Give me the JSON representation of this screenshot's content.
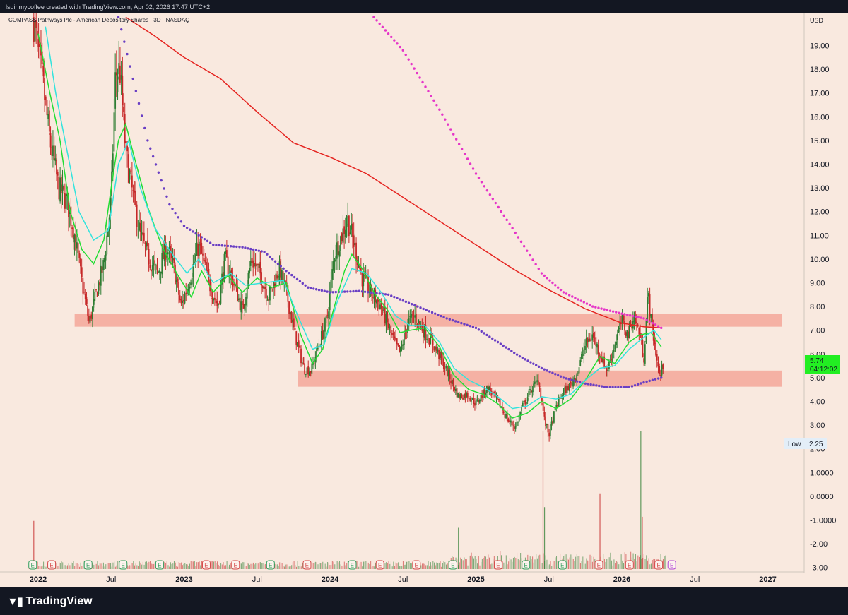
{
  "header": {
    "credit": "lsdinmycoffee created with TradingView.com, Apr 02, 2026 17:47 UTC+2"
  },
  "footer": {
    "logo_text": "TradingView"
  },
  "colors": {
    "background": "#f9e9df",
    "bull": "#2e7d32",
    "bear": "#c62828",
    "zone": "#f4a79a",
    "ma_red": "#e52420",
    "ma_magenta": "#e535c8",
    "ma_blue": "#6a3fc4",
    "ma_green": "#22dd33",
    "ma_cyan": "#33e3dd",
    "last_price_bg": "#22ee22"
  },
  "chart_data": {
    "type": "candlestick",
    "title": "COMPASS Pathways Plc - American Depository Shares · 3D · NASDAQ",
    "currency": "USD",
    "price_axis": {
      "ylim": [
        -3.0,
        20.0
      ],
      "ticks": [
        "-3.00",
        "-2.00",
        "-1.0000",
        "0.0000",
        "1.0000",
        "2.00",
        "3.00",
        "4.00",
        "5.00",
        "6.00",
        "7.00",
        "8.00",
        "9.00",
        "10.00",
        "11.00",
        "12.00",
        "13.00",
        "14.00",
        "15.00",
        "16.00",
        "17.00",
        "18.00",
        "19.00"
      ]
    },
    "time_axis": {
      "ticks": [
        "2022",
        "Jul",
        "2023",
        "Jul",
        "2024",
        "Jul",
        "2025",
        "Jul",
        "2026",
        "Jul",
        "2027"
      ],
      "bold_ticks": [
        "2022",
        "2023",
        "2024",
        "2025",
        "2026",
        "2027"
      ]
    },
    "last_price": "5.74",
    "countdown": "04:12:02",
    "low_label": "Low",
    "low_value": "2.25",
    "support_zones": [
      {
        "from": 2022.25,
        "to": 2027.45,
        "low": 7.15,
        "high": 7.7
      },
      {
        "from": 2023.78,
        "to": 2028.78,
        "low": 4.62,
        "high": 5.3
      }
    ],
    "price_path": [
      [
        2021.97,
        20.0
      ],
      [
        2022.03,
        17.5
      ],
      [
        2022.08,
        15.0
      ],
      [
        2022.14,
        13.0
      ],
      [
        2022.2,
        12.4
      ],
      [
        2022.25,
        11.0
      ],
      [
        2022.3,
        9.0
      ],
      [
        2022.35,
        7.3
      ],
      [
        2022.4,
        8.6
      ],
      [
        2022.45,
        9.8
      ],
      [
        2022.5,
        12.5
      ],
      [
        2022.53,
        17.8
      ],
      [
        2022.56,
        18.0
      ],
      [
        2022.6,
        14.5
      ],
      [
        2022.64,
        13.0
      ],
      [
        2022.7,
        11.0
      ],
      [
        2022.76,
        10.0
      ],
      [
        2022.82,
        9.4
      ],
      [
        2022.88,
        10.5
      ],
      [
        2022.93,
        9.6
      ],
      [
        2022.98,
        8.0
      ],
      [
        2023.05,
        9.4
      ],
      [
        2023.1,
        10.6
      ],
      [
        2023.17,
        9.0
      ],
      [
        2023.23,
        8.0
      ],
      [
        2023.28,
        10.0
      ],
      [
        2023.34,
        9.0
      ],
      [
        2023.4,
        7.8
      ],
      [
        2023.46,
        10.0
      ],
      [
        2023.52,
        9.4
      ],
      [
        2023.58,
        8.4
      ],
      [
        2023.65,
        9.6
      ],
      [
        2023.7,
        8.6
      ],
      [
        2023.76,
        6.8
      ],
      [
        2023.82,
        5.4
      ],
      [
        2023.87,
        5.3
      ],
      [
        2023.93,
        6.5
      ],
      [
        2023.98,
        7.5
      ],
      [
        2024.03,
        10.2
      ],
      [
        2024.08,
        11.0
      ],
      [
        2024.12,
        11.7
      ],
      [
        2024.17,
        10.5
      ],
      [
        2024.22,
        9.2
      ],
      [
        2024.28,
        8.6
      ],
      [
        2024.35,
        8.0
      ],
      [
        2024.42,
        6.8
      ],
      [
        2024.48,
        6.0
      ],
      [
        2024.53,
        7.3
      ],
      [
        2024.58,
        7.6
      ],
      [
        2024.64,
        7.0
      ],
      [
        2024.7,
        6.5
      ],
      [
        2024.76,
        5.8
      ],
      [
        2024.82,
        5.0
      ],
      [
        2024.88,
        4.2
      ],
      [
        2024.94,
        4.3
      ],
      [
        2025.0,
        3.9
      ],
      [
        2025.08,
        4.6
      ],
      [
        2025.15,
        4.0
      ],
      [
        2025.22,
        3.2
      ],
      [
        2025.27,
        2.9
      ],
      [
        2025.32,
        3.8
      ],
      [
        2025.38,
        4.5
      ],
      [
        2025.43,
        4.9
      ],
      [
        2025.47,
        3.2
      ],
      [
        2025.5,
        2.6
      ],
      [
        2025.55,
        3.8
      ],
      [
        2025.6,
        4.4
      ],
      [
        2025.65,
        4.7
      ],
      [
        2025.7,
        5.3
      ],
      [
        2025.75,
        6.4
      ],
      [
        2025.8,
        6.8
      ],
      [
        2025.85,
        6.0
      ],
      [
        2025.9,
        5.3
      ],
      [
        2025.95,
        6.4
      ],
      [
        2026.0,
        7.4
      ],
      [
        2026.04,
        6.8
      ],
      [
        2026.08,
        7.6
      ],
      [
        2026.12,
        6.9
      ],
      [
        2026.15,
        5.8
      ],
      [
        2026.18,
        8.6
      ],
      [
        2026.2,
        7.4
      ],
      [
        2026.23,
        6.2
      ],
      [
        2026.26,
        5.0
      ],
      [
        2026.29,
        5.74
      ]
    ],
    "moving_averages": [
      {
        "color": "#e52420",
        "style": "line",
        "points": [
          [
            2022.6,
            20.2
          ],
          [
            2022.8,
            19.4
          ],
          [
            2023.0,
            18.5
          ],
          [
            2023.25,
            17.6
          ],
          [
            2023.5,
            16.2
          ],
          [
            2023.75,
            14.9
          ],
          [
            2024.0,
            14.3
          ],
          [
            2024.25,
            13.6
          ],
          [
            2024.5,
            12.6
          ],
          [
            2024.75,
            11.6
          ],
          [
            2025.0,
            10.6
          ],
          [
            2025.25,
            9.6
          ],
          [
            2025.5,
            8.7
          ],
          [
            2025.75,
            7.9
          ],
          [
            2026.0,
            7.3
          ],
          [
            2026.15,
            7.15
          ],
          [
            2026.27,
            7.1
          ]
        ]
      },
      {
        "color": "#e535c8",
        "style": "dots",
        "points": [
          [
            2024.3,
            20.2
          ],
          [
            2024.5,
            18.8
          ],
          [
            2024.75,
            16.3
          ],
          [
            2025.0,
            13.6
          ],
          [
            2025.25,
            11.3
          ],
          [
            2025.45,
            9.4
          ],
          [
            2025.6,
            8.6
          ],
          [
            2025.8,
            8.0
          ],
          [
            2026.0,
            7.7
          ],
          [
            2026.15,
            7.5
          ],
          [
            2026.27,
            7.1
          ]
        ]
      },
      {
        "color": "#6a3fc4",
        "style": "dots",
        "points": [
          [
            2022.55,
            20.2
          ],
          [
            2022.75,
            15.0
          ],
          [
            2022.9,
            12.3
          ],
          [
            2023.0,
            11.4
          ],
          [
            2023.2,
            10.6
          ],
          [
            2023.4,
            10.5
          ],
          [
            2023.55,
            10.3
          ],
          [
            2023.7,
            9.5
          ],
          [
            2023.85,
            8.8
          ],
          [
            2024.0,
            8.6
          ],
          [
            2024.2,
            8.65
          ],
          [
            2024.4,
            8.5
          ],
          [
            2024.6,
            8.0
          ],
          [
            2024.8,
            7.5
          ],
          [
            2025.0,
            7.1
          ],
          [
            2025.15,
            6.5
          ],
          [
            2025.3,
            5.9
          ],
          [
            2025.45,
            5.4
          ],
          [
            2025.6,
            5.0
          ],
          [
            2025.75,
            4.75
          ],
          [
            2025.9,
            4.6
          ],
          [
            2026.05,
            4.6
          ],
          [
            2026.15,
            4.8
          ],
          [
            2026.27,
            5.0
          ]
        ]
      },
      {
        "color": "#22dd33",
        "style": "line",
        "points": [
          [
            2022.0,
            19.5
          ],
          [
            2022.08,
            17.0
          ],
          [
            2022.15,
            15.0
          ],
          [
            2022.22,
            12.0
          ],
          [
            2022.3,
            10.4
          ],
          [
            2022.38,
            9.8
          ],
          [
            2022.45,
            10.8
          ],
          [
            2022.5,
            13.0
          ],
          [
            2022.55,
            15.0
          ],
          [
            2022.6,
            15.7
          ],
          [
            2022.65,
            14.5
          ],
          [
            2022.75,
            12.2
          ],
          [
            2022.85,
            10.5
          ],
          [
            2022.95,
            9.4
          ],
          [
            2023.05,
            8.4
          ],
          [
            2023.12,
            9.5
          ],
          [
            2023.2,
            8.6
          ],
          [
            2023.3,
            9.3
          ],
          [
            2023.4,
            8.6
          ],
          [
            2023.5,
            9.2
          ],
          [
            2023.6,
            8.8
          ],
          [
            2023.7,
            9.0
          ],
          [
            2023.8,
            6.8
          ],
          [
            2023.88,
            5.6
          ],
          [
            2023.95,
            6.2
          ],
          [
            2024.03,
            8.0
          ],
          [
            2024.1,
            9.5
          ],
          [
            2024.15,
            10.2
          ],
          [
            2024.22,
            9.6
          ],
          [
            2024.3,
            8.6
          ],
          [
            2024.4,
            7.8
          ],
          [
            2024.48,
            6.9
          ],
          [
            2024.55,
            7.0
          ],
          [
            2024.65,
            7.1
          ],
          [
            2024.75,
            6.3
          ],
          [
            2024.85,
            5.1
          ],
          [
            2024.95,
            4.5
          ],
          [
            2025.05,
            4.3
          ],
          [
            2025.15,
            3.9
          ],
          [
            2025.25,
            3.3
          ],
          [
            2025.35,
            3.5
          ],
          [
            2025.45,
            4.0
          ],
          [
            2025.55,
            3.7
          ],
          [
            2025.65,
            4.1
          ],
          [
            2025.75,
            4.9
          ],
          [
            2025.85,
            5.9
          ],
          [
            2025.95,
            5.6
          ],
          [
            2026.05,
            6.5
          ],
          [
            2026.12,
            6.8
          ],
          [
            2026.2,
            6.9
          ],
          [
            2026.27,
            6.3
          ]
        ]
      },
      {
        "color": "#33e3dd",
        "style": "line",
        "points": [
          [
            2022.05,
            19.8
          ],
          [
            2022.12,
            17.0
          ],
          [
            2022.2,
            14.5
          ],
          [
            2022.28,
            12.0
          ],
          [
            2022.38,
            10.8
          ],
          [
            2022.48,
            11.2
          ],
          [
            2022.55,
            14.0
          ],
          [
            2022.62,
            15.0
          ],
          [
            2022.7,
            13.0
          ],
          [
            2022.8,
            11.3
          ],
          [
            2022.92,
            10.2
          ],
          [
            2023.02,
            9.4
          ],
          [
            2023.1,
            10.0
          ],
          [
            2023.2,
            9.0
          ],
          [
            2023.32,
            9.4
          ],
          [
            2023.42,
            8.9
          ],
          [
            2023.55,
            9.0
          ],
          [
            2023.68,
            9.1
          ],
          [
            2023.78,
            7.6
          ],
          [
            2023.88,
            6.2
          ],
          [
            2023.96,
            6.4
          ],
          [
            2024.05,
            8.2
          ],
          [
            2024.15,
            9.6
          ],
          [
            2024.25,
            9.4
          ],
          [
            2024.35,
            8.6
          ],
          [
            2024.45,
            7.6
          ],
          [
            2024.55,
            7.2
          ],
          [
            2024.65,
            7.2
          ],
          [
            2024.75,
            6.5
          ],
          [
            2024.85,
            5.4
          ],
          [
            2024.95,
            4.9
          ],
          [
            2025.05,
            4.6
          ],
          [
            2025.15,
            4.2
          ],
          [
            2025.25,
            3.7
          ],
          [
            2025.35,
            3.8
          ],
          [
            2025.45,
            4.2
          ],
          [
            2025.55,
            4.1
          ],
          [
            2025.65,
            4.3
          ],
          [
            2025.75,
            4.9
          ],
          [
            2025.85,
            5.4
          ],
          [
            2025.95,
            5.5
          ],
          [
            2026.05,
            6.2
          ],
          [
            2026.15,
            6.7
          ],
          [
            2026.22,
            7.0
          ],
          [
            2026.27,
            6.6
          ]
        ]
      }
    ],
    "volume_spikes": [
      {
        "x": 2021.97,
        "v": 0.35,
        "bear": true
      },
      {
        "x": 2025.46,
        "v": 1.0,
        "bear": true
      },
      {
        "x": 2025.47,
        "v": 0.45,
        "bear": false
      },
      {
        "x": 2025.85,
        "v": 0.55,
        "bear": true
      },
      {
        "x": 2026.13,
        "v": 1.0,
        "bear": false
      },
      {
        "x": 2026.14,
        "v": 0.38,
        "bear": true
      },
      {
        "x": 2024.88,
        "v": 0.3,
        "bear": false
      }
    ],
    "events": [
      {
        "x": 2021.96,
        "label": "E",
        "kind": "green"
      },
      {
        "x": 2022.09,
        "label": "E",
        "kind": "red"
      },
      {
        "x": 2022.34,
        "label": "E",
        "kind": "green"
      },
      {
        "x": 2022.58,
        "label": "E",
        "kind": "green"
      },
      {
        "x": 2022.83,
        "label": "E",
        "kind": "green"
      },
      {
        "x": 2023.15,
        "label": "E",
        "kind": "red"
      },
      {
        "x": 2023.35,
        "label": "E",
        "kind": "red"
      },
      {
        "x": 2023.59,
        "label": "E",
        "kind": "green"
      },
      {
        "x": 2023.84,
        "label": "E",
        "kind": "red"
      },
      {
        "x": 2024.15,
        "label": "E",
        "kind": "green"
      },
      {
        "x": 2024.34,
        "label": "E",
        "kind": "red"
      },
      {
        "x": 2024.59,
        "label": "E",
        "kind": "red"
      },
      {
        "x": 2024.84,
        "label": "E",
        "kind": "green"
      },
      {
        "x": 2025.15,
        "label": "E",
        "kind": "red"
      },
      {
        "x": 2025.34,
        "label": "E",
        "kind": "green"
      },
      {
        "x": 2025.59,
        "label": "E",
        "kind": "green"
      },
      {
        "x": 2025.84,
        "label": "E",
        "kind": "red"
      },
      {
        "x": 2026.05,
        "label": "E",
        "kind": "red"
      },
      {
        "x": 2026.25,
        "label": "E",
        "kind": "red"
      },
      {
        "x": 2026.34,
        "label": "E",
        "kind": "purple"
      }
    ]
  }
}
